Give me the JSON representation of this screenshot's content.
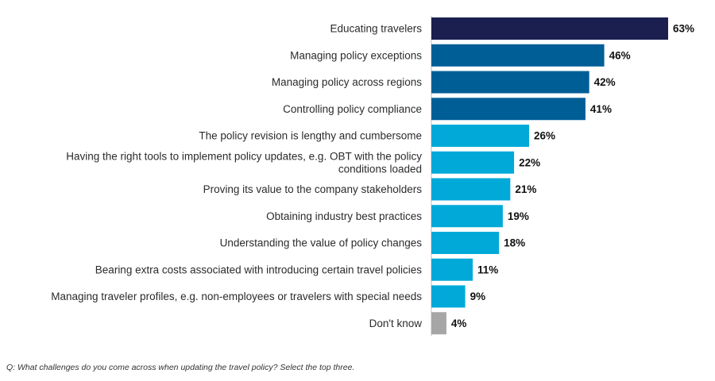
{
  "chart_data": {
    "type": "bar",
    "orientation": "horizontal",
    "categories": [
      [
        "Educating travelers"
      ],
      [
        "Managing policy exceptions"
      ],
      [
        "Managing policy across regions"
      ],
      [
        "Controlling policy compliance"
      ],
      [
        "The policy revision is lengthy and cumbersome"
      ],
      [
        "Having the right tools to implement policy updates, e.g. OBT with the policy",
        "conditions loaded"
      ],
      [
        "Proving its value to the company stakeholders"
      ],
      [
        "Obtaining industry best practices"
      ],
      [
        "Understanding the value of policy changes"
      ],
      [
        "Bearing extra costs associated with introducing certain travel policies"
      ],
      [
        "Managing traveler profiles, e.g. non-employees or travelers with special needs"
      ],
      [
        "Don't know"
      ]
    ],
    "values": [
      63,
      46,
      42,
      41,
      26,
      22,
      21,
      19,
      18,
      11,
      9,
      4
    ],
    "value_labels": [
      "63%",
      "46%",
      "42%",
      "41%",
      "26%",
      "22%",
      "21%",
      "19%",
      "18%",
      "11%",
      "9%",
      "4%"
    ],
    "colors": [
      "#1a1f4f",
      "#005e97",
      "#005e97",
      "#005e97",
      "#00a9d8",
      "#00a9d8",
      "#00a9d8",
      "#00a9d8",
      "#00a9d8",
      "#00a9d8",
      "#00a9d8",
      "#a6a6a6"
    ],
    "axis_color": "#bdbdbd",
    "xlim": [
      0,
      63
    ],
    "grid": false,
    "legend": "none"
  },
  "footnote": "Q: What challenges do you come across when updating the travel policy? Select the top three."
}
